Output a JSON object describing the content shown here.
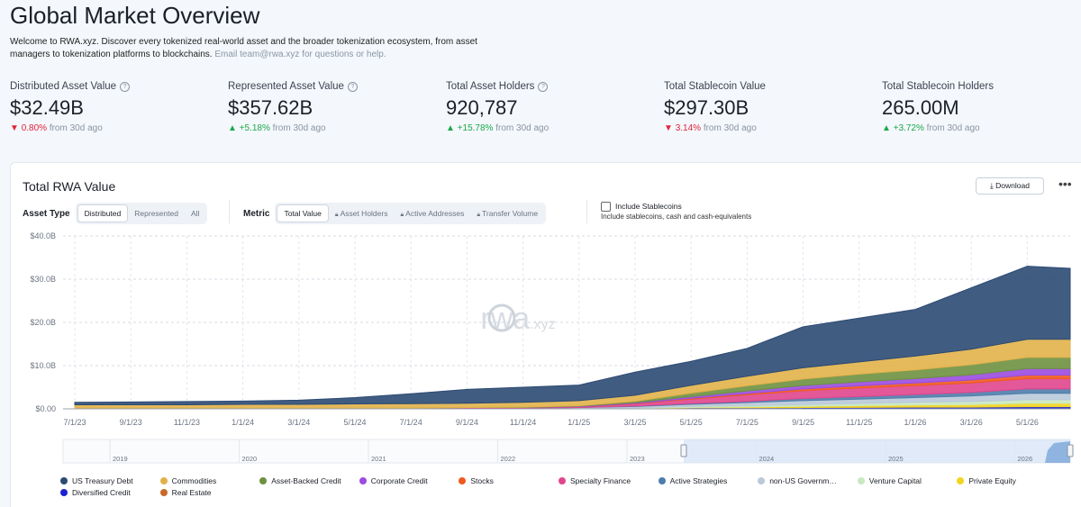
{
  "header": {
    "title": "Global Market Overview",
    "description": "Welcome to RWA.xyz. Discover every tokenized real-world asset and the broader tokenization ecosystem, from asset managers to tokenization platforms to blockchains.",
    "contact": "Email team@rwa.xyz for questions or help."
  },
  "stats": [
    {
      "label": "Distributed Asset Value",
      "value": "$32.49B",
      "change": "0.80%",
      "direction": "down",
      "suffix": "from 30d ago",
      "info": true
    },
    {
      "label": "Represented Asset Value",
      "value": "$357.62B",
      "change": "+5.18%",
      "direction": "up",
      "suffix": "from 30d ago",
      "info": true
    },
    {
      "label": "Total Asset Holders",
      "value": "920,787",
      "change": "+15.78%",
      "direction": "up",
      "suffix": "from 30d ago",
      "info": true
    },
    {
      "label": "Total Stablecoin Value",
      "value": "$297.30B",
      "change": "3.14%",
      "direction": "down",
      "suffix": "from 30d ago",
      "info": false
    },
    {
      "label": "Total Stablecoin Holders",
      "value": "265.00M",
      "change": "+3.72%",
      "direction": "up",
      "suffix": "from 30d ago",
      "info": false
    }
  ],
  "panel": {
    "title": "Total RWA Value",
    "download": "Download",
    "asset_type_label": "Asset Type",
    "asset_types": [
      "Distributed",
      "Represented",
      "All"
    ],
    "metric_label": "Metric",
    "metrics": [
      "Total Value",
      "Asset Holders",
      "Active Addresses",
      "Transfer Volume"
    ],
    "stablecoin_toggle": "Include Stablecoins",
    "stablecoin_note": "Include stablecoins, cash and cash-equivalents",
    "watermark": "rwa",
    "watermark_suffix": ".xyz",
    "navigator_years": [
      "2019",
      "2020",
      "2021",
      "2022",
      "2023",
      "2024",
      "2025",
      "2026"
    ]
  },
  "chart_data": {
    "type": "stacked_area",
    "title": "Total RWA Value",
    "categories": [
      "7/1/23",
      "9/1/23",
      "11/1/23",
      "1/1/24",
      "3/1/24",
      "5/1/24",
      "7/1/24",
      "9/1/24",
      "11/1/24",
      "1/1/25",
      "3/1/25",
      "5/1/25",
      "7/1/25",
      "9/1/25",
      "11/1/25",
      "1/1/26",
      "3/1/26",
      "5/1/26",
      null
    ],
    "ylim": [
      0,
      40
    ],
    "yticks": [
      {
        "value": 0,
        "label": "$0.00"
      },
      {
        "value": 10,
        "label": "$10.0B"
      },
      {
        "value": 20,
        "label": "$20.0B"
      },
      {
        "value": 30,
        "label": "$30.0B"
      },
      {
        "value": 40,
        "label": "$40.0B"
      }
    ],
    "grid": true,
    "legend": "bottom",
    "series": [
      {
        "name": "US Treasury Debt",
        "color": "#2c4a73",
        "values": [
          0.55,
          0.65,
          0.75,
          0.75,
          0.95,
          1.45,
          2.3,
          3.2,
          3.5,
          3.6,
          5.35,
          5.55,
          6.45,
          9.5,
          10.15,
          10.8,
          14.2,
          16.9,
          16.4
        ]
      },
      {
        "name": "Commodities",
        "color": "#e2b24a",
        "values": [
          0.8,
          0.8,
          0.8,
          0.9,
          0.9,
          1.0,
          1.0,
          1.0,
          1.1,
          1.2,
          1.4,
          1.8,
          2.2,
          2.6,
          2.8,
          3.2,
          3.6,
          4.2,
          4.2
        ]
      },
      {
        "name": "Asset-Backed Credit",
        "color": "#6e9140",
        "values": [
          0,
          0,
          0,
          0,
          0,
          0,
          0,
          0,
          0.1,
          0.1,
          0.3,
          0.8,
          1.2,
          1.5,
          1.8,
          2.0,
          2.3,
          2.6,
          2.6
        ]
      },
      {
        "name": "Corporate Credit",
        "color": "#9b4be0",
        "values": [
          0,
          0,
          0,
          0,
          0,
          0,
          0,
          0,
          0,
          0.1,
          0.2,
          0.4,
          0.6,
          0.8,
          0.9,
          1.0,
          1.2,
          1.5,
          1.5
        ]
      },
      {
        "name": "Stocks",
        "color": "#f05a1e",
        "values": [
          0,
          0,
          0,
          0,
          0,
          0,
          0,
          0,
          0,
          0,
          0.1,
          0.2,
          0.3,
          0.4,
          0.5,
          0.6,
          0.7,
          0.8,
          0.8
        ]
      },
      {
        "name": "Specialty Finance",
        "color": "#e0468e",
        "values": [
          0,
          0,
          0,
          0,
          0,
          0,
          0,
          0.1,
          0.1,
          0.2,
          0.5,
          1.0,
          1.5,
          1.8,
          2.0,
          2.1,
          2.2,
          2.4,
          2.4
        ]
      },
      {
        "name": "Active Strategies",
        "color": "#4e7dab",
        "values": [
          0,
          0,
          0,
          0,
          0,
          0,
          0,
          0,
          0,
          0,
          0.1,
          0.2,
          0.3,
          0.5,
          0.6,
          0.7,
          0.8,
          1.0,
          1.0
        ]
      },
      {
        "name": "non-US Governm…",
        "color": "#b9c9d9",
        "values": [
          0.1,
          0.1,
          0.1,
          0.1,
          0.1,
          0.1,
          0.1,
          0.1,
          0.1,
          0.2,
          0.3,
          0.5,
          0.7,
          0.9,
          1.0,
          1.1,
          1.3,
          1.5,
          1.5
        ]
      },
      {
        "name": "Venture Capital",
        "color": "#c9e8c2",
        "values": [
          0,
          0,
          0,
          0,
          0,
          0,
          0,
          0,
          0,
          0,
          0.1,
          0.2,
          0.3,
          0.4,
          0.5,
          0.6,
          0.7,
          0.8,
          0.8
        ]
      },
      {
        "name": "Private Equity",
        "color": "#f3d51f",
        "values": [
          0,
          0,
          0,
          0,
          0,
          0,
          0,
          0,
          0,
          0,
          0,
          0.1,
          0.2,
          0.3,
          0.4,
          0.5,
          0.6,
          0.8,
          0.8
        ]
      },
      {
        "name": "Diversified Credit",
        "color": "#1c22d0",
        "values": [
          0,
          0,
          0,
          0,
          0,
          0,
          0,
          0,
          0,
          0,
          0.05,
          0.1,
          0.1,
          0.1,
          0.15,
          0.2,
          0.2,
          0.3,
          0.3
        ]
      },
      {
        "name": "Real Estate",
        "color": "#c8682a",
        "values": [
          0.05,
          0.05,
          0.05,
          0.05,
          0.05,
          0.05,
          0.1,
          0.1,
          0.1,
          0.1,
          0.1,
          0.15,
          0.15,
          0.2,
          0.2,
          0.2,
          0.2,
          0.2,
          0.2
        ]
      }
    ]
  }
}
